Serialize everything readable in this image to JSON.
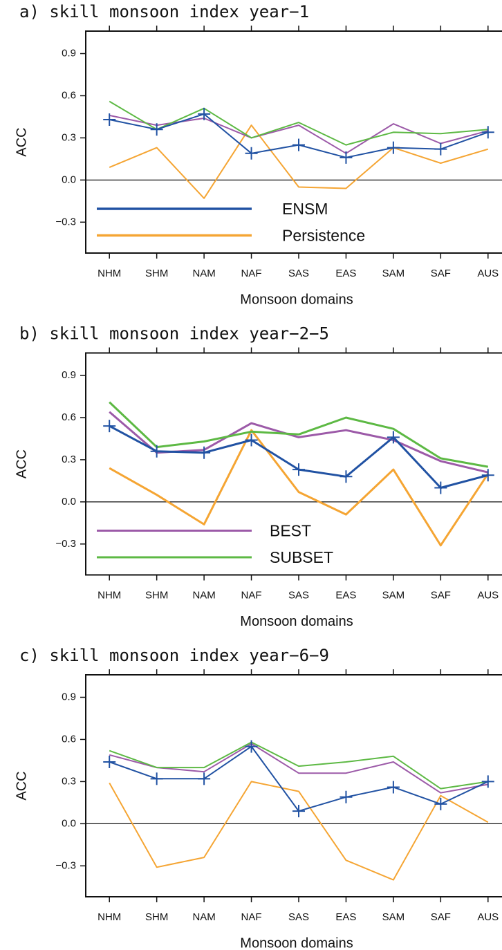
{
  "chart_data": [
    {
      "type": "line",
      "title": "a) skill monsoon index year−1",
      "x_label": "Monsoon domains",
      "y_label": "ACC",
      "categories": [
        "NHM",
        "SHM",
        "NAM",
        "NAF",
        "SAS",
        "EAS",
        "SAM",
        "SAF",
        "AUS"
      ],
      "ylim": [
        -0.52,
        1.06
      ],
      "yticks": [
        {
          "value": -0.3,
          "label": "−0.3"
        },
        {
          "value": 0,
          "label": "0.0"
        },
        0.3,
        0.6,
        0.9
      ],
      "zero_line": true,
      "legend": "lower left",
      "line_width": 2,
      "series": [
        {
          "name": "ENSM",
          "color": "#2152a3",
          "marker": "plus",
          "values": [
            0.43,
            0.36,
            0.47,
            0.19,
            0.25,
            0.16,
            0.23,
            0.22,
            0.34
          ]
        },
        {
          "name": "Persistence",
          "color": "#f5a533",
          "values": [
            0.09,
            0.23,
            -0.13,
            0.39,
            -0.05,
            -0.06,
            0.23,
            0.12,
            0.22
          ]
        },
        {
          "color": "#9c5aa8",
          "values": [
            0.46,
            0.39,
            0.44,
            0.3,
            0.39,
            0.19,
            0.4,
            0.26,
            0.35
          ]
        },
        {
          "color": "#5db944",
          "values": [
            0.56,
            0.36,
            0.51,
            0.3,
            0.41,
            0.25,
            0.34,
            0.33,
            0.36
          ]
        }
      ]
    },
    {
      "type": "line",
      "title": "b) skill monsoon index year−2−5",
      "x_label": "Monsoon domains",
      "y_label": "ACC",
      "categories": [
        "NHM",
        "SHM",
        "NAM",
        "NAF",
        "SAS",
        "EAS",
        "SAM",
        "SAF",
        "AUS"
      ],
      "ylim": [
        -0.52,
        1.06
      ],
      "yticks": [
        {
          "value": -0.3,
          "label": "−0.3"
        },
        {
          "value": 0,
          "label": "0.0"
        },
        0.3,
        0.6,
        0.9
      ],
      "zero_line": true,
      "legend": "lower left",
      "line_width": 3,
      "series": [
        {
          "color": "#2152a3",
          "marker": "plus",
          "values": [
            0.54,
            0.36,
            0.35,
            0.44,
            0.23,
            0.18,
            0.46,
            0.1,
            0.19
          ]
        },
        {
          "color": "#f5a533",
          "values": [
            0.24,
            0.05,
            -0.16,
            0.51,
            0.07,
            -0.09,
            0.23,
            -0.31,
            0.2
          ]
        },
        {
          "name": "BEST",
          "color": "#9c5aa8",
          "values": [
            0.64,
            0.35,
            0.37,
            0.56,
            0.46,
            0.51,
            0.44,
            0.29,
            0.21
          ]
        },
        {
          "name": "SUBSET",
          "color": "#5db944",
          "values": [
            0.71,
            0.39,
            0.43,
            0.5,
            0.48,
            0.6,
            0.52,
            0.31,
            0.25
          ]
        }
      ]
    },
    {
      "type": "line",
      "title": "c) skill monsoon index year−6−9",
      "x_label": "Monsoon domains",
      "y_label": "ACC",
      "categories": [
        "NHM",
        "SHM",
        "NAM",
        "NAF",
        "SAS",
        "EAS",
        "SAM",
        "SAF",
        "AUS"
      ],
      "ylim": [
        -0.52,
        1.06
      ],
      "yticks": [
        {
          "value": -0.3,
          "label": "−0.3"
        },
        {
          "value": 0,
          "label": "0.0"
        },
        0.3,
        0.6,
        0.9
      ],
      "zero_line": true,
      "line_width": 2,
      "series": [
        {
          "color": "#2152a3",
          "marker": "plus",
          "values": [
            0.44,
            0.32,
            0.32,
            0.55,
            0.09,
            0.19,
            0.26,
            0.14,
            0.3
          ]
        },
        {
          "color": "#f5a533",
          "values": [
            0.29,
            -0.31,
            -0.24,
            0.3,
            0.23,
            -0.26,
            -0.4,
            0.2,
            0.01
          ]
        },
        {
          "color": "#9c5aa8",
          "values": [
            0.49,
            0.4,
            0.37,
            0.57,
            0.36,
            0.36,
            0.44,
            0.22,
            0.28
          ]
        },
        {
          "color": "#5db944",
          "values": [
            0.52,
            0.4,
            0.4,
            0.58,
            0.41,
            0.44,
            0.48,
            0.25,
            0.3
          ]
        }
      ]
    }
  ]
}
